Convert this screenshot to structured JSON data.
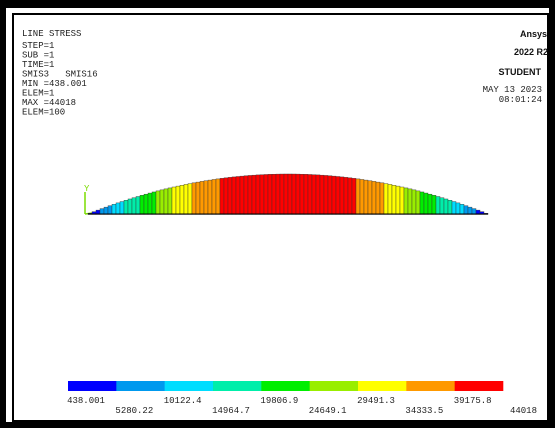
{
  "info": {
    "title": "LINE STRESS",
    "lines": [
      "STEP=1",
      "SUB =1",
      "TIME=1",
      "SMIS3   SMIS16",
      "MIN =438.001",
      "ELEM=1",
      "MAX =44018",
      "ELEM=100"
    ]
  },
  "logo": {
    "brand": "Ansys",
    "version": "2022 R2",
    "edition": "STUDENT"
  },
  "timestamp": {
    "date": "MAY 13 2023",
    "time": "08:01:24"
  },
  "legend": {
    "colors": [
      "#0000ff",
      "#0099ee",
      "#00ddff",
      "#00eeaa",
      "#00ee00",
      "#99ee00",
      "#ffff00",
      "#ff9900",
      "#ff0000"
    ],
    "labels": [
      "438.001",
      "5280.22",
      "10122.4",
      "14964.7",
      "19806.9",
      "24649.1",
      "29491.3",
      "34333.5",
      "39175.8",
      "44018"
    ]
  }
}
